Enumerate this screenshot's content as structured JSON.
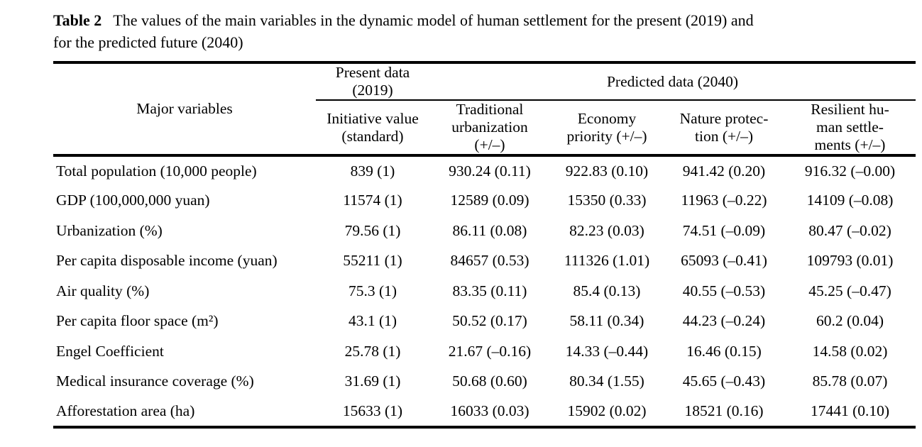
{
  "caption": {
    "label": "Table 2",
    "text": "The values of the main variables in the dynamic model of human settlement for the present (2019) and\nfor the predicted future (2040)"
  },
  "table": {
    "header": {
      "major_variables": "Major variables",
      "present_group": "Present data\n(2019)",
      "predicted_group": "Predicted data (2040)",
      "sub_headers": [
        "Initiative value\n(standard)",
        "Traditional\nurbanization\n(+/–)",
        "Economy\npriority (+/–)",
        "Nature protec-\ntion (+/–)",
        "Resilient hu-\nman settle-\nments (+/–)"
      ]
    },
    "rows": [
      {
        "label": "Total population (10,000 people)",
        "values": [
          "839 (1)",
          "930.24 (0.11)",
          "922.83 (0.10)",
          "941.42 (0.20)",
          "916.32 (–0.00)"
        ]
      },
      {
        "label": "GDP (100,000,000 yuan)",
        "values": [
          "11574 (1)",
          "12589 (0.09)",
          "15350 (0.33)",
          "11963 (–0.22)",
          "14109 (–0.08)"
        ]
      },
      {
        "label": "Urbanization (%)",
        "values": [
          "79.56 (1)",
          "86.11 (0.08)",
          "82.23 (0.03)",
          "74.51 (–0.09)",
          "80.47 (–0.02)"
        ]
      },
      {
        "label": "Per capita disposable income (yuan)",
        "values": [
          "55211 (1)",
          "84657 (0.53)",
          "111326 (1.01)",
          "65093 (–0.41)",
          "109793 (0.01)"
        ]
      },
      {
        "label": "Air quality (%)",
        "values": [
          "75.3 (1)",
          "83.35 (0.11)",
          "85.4 (0.13)",
          "40.55 (–0.53)",
          "45.25 (–0.47)"
        ]
      },
      {
        "label": "Per capita floor space (m²)",
        "values": [
          "43.1 (1)",
          "50.52 (0.17)",
          "58.11 (0.34)",
          "44.23 (–0.24)",
          "60.2 (0.04)"
        ]
      },
      {
        "label": "Engel Coefficient",
        "values": [
          "25.78 (1)",
          "21.67 (–0.16)",
          "14.33 (–0.44)",
          "16.46 (0.15)",
          "14.58 (0.02)"
        ]
      },
      {
        "label": "Medical insurance coverage (%)",
        "values": [
          "31.69 (1)",
          "50.68 (0.60)",
          "80.34 (1.55)",
          "45.65 (–0.43)",
          "85.78 (0.07)"
        ]
      },
      {
        "label": "Afforestation area (ha)",
        "values": [
          "15633 (1)",
          "16033 (0.03)",
          "15902 (0.02)",
          "18521 (0.16)",
          "17441 (0.10)"
        ]
      }
    ]
  }
}
